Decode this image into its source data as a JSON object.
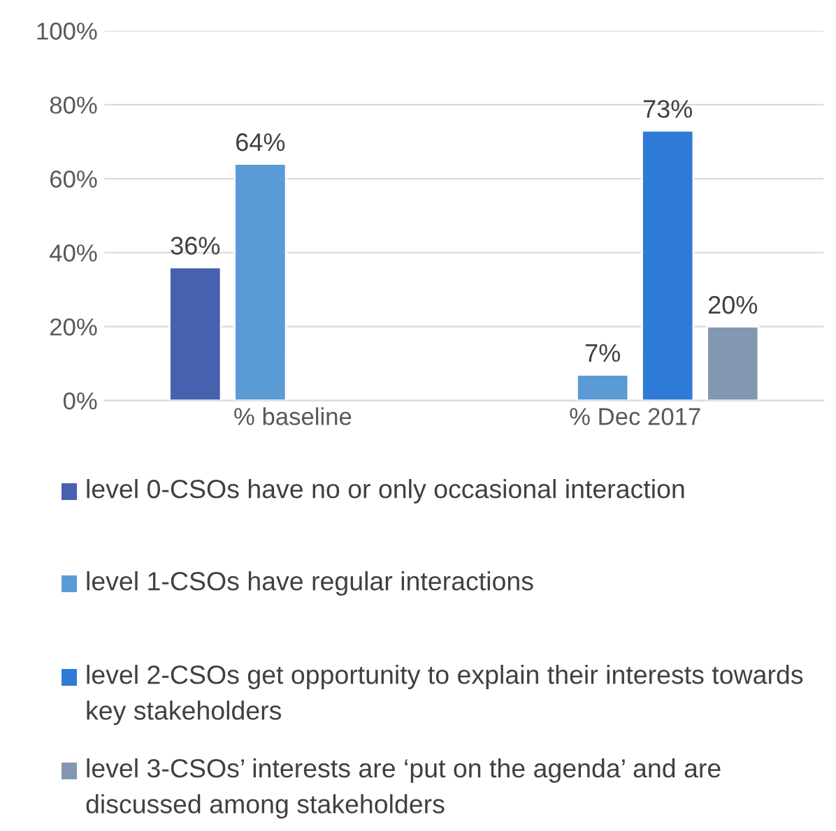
{
  "chart_data": {
    "type": "bar",
    "categories": [
      "% baseline",
      "% Dec 2017"
    ],
    "series": [
      {
        "name": "level 0-CSOs have no or only occasional interaction",
        "color": "#4661ad",
        "values": [
          36,
          null
        ],
        "value_labels": [
          "36%",
          null
        ]
      },
      {
        "name": "level 1-CSOs have regular interactions",
        "color": "#5b9bd5",
        "values": [
          64,
          7
        ],
        "value_labels": [
          "64%",
          "7%"
        ]
      },
      {
        "name": "level 2-CSOs get opportunity to explain their interests towards key stakeholders",
        "color": "#2f7bd8",
        "values": [
          null,
          73
        ],
        "value_labels": [
          null,
          "73%"
        ]
      },
      {
        "name": "level 3-CSOs’ interests are ‘put on the agenda’ and are discussed among stakeholders",
        "color": "#8497b0",
        "values": [
          null,
          20
        ],
        "value_labels": [
          null,
          "20%"
        ]
      }
    ],
    "ylim": [
      0,
      100
    ],
    "yticks": [
      {
        "value": 0,
        "label": "0%"
      },
      {
        "value": 20,
        "label": "20%"
      },
      {
        "value": 40,
        "label": "40%"
      },
      {
        "value": 60,
        "label": "60%"
      },
      {
        "value": 80,
        "label": "80%"
      },
      {
        "value": 100,
        "label": "100%"
      }
    ],
    "grid": "y",
    "legend": "bottom"
  }
}
